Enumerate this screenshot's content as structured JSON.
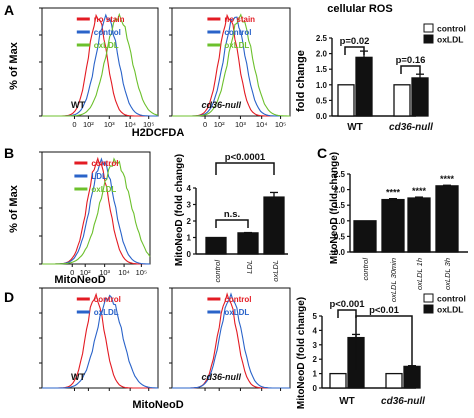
{
  "colors": {
    "red": "#e31b23",
    "blue": "#2a63c9",
    "green": "#6cc02c",
    "axis": "#111111",
    "bar_black": "#111111",
    "bar_white": "#ffffff"
  },
  "panels": [
    {
      "letter": "A"
    },
    {
      "letter": "B"
    },
    {
      "letter": "C"
    },
    {
      "letter": "D"
    }
  ],
  "chart_data": [
    {
      "id": "A-flow",
      "type": "line",
      "ylabel": "% of Max",
      "xlabel": "H2DCFDA",
      "xticks": [
        "0",
        "10²",
        "10³",
        "10⁴",
        "10⁵"
      ],
      "subplots": [
        {
          "label": "WT",
          "legend": [
            "no stain",
            "control",
            "oxLDL"
          ]
        },
        {
          "label": "cd36-null",
          "legend": [
            "no stain",
            "control",
            "oxLDL"
          ]
        }
      ]
    },
    {
      "id": "A-bar",
      "type": "bar",
      "title": "cellular ROS",
      "ylabel": "fold change",
      "ylim": [
        0,
        2.5
      ],
      "yticks": [
        "0.0",
        "0.5",
        "1.0",
        "1.5",
        "2.0",
        "2.5"
      ],
      "groups": [
        "WT",
        "cd36-null"
      ],
      "legend": [
        "control",
        "oxLDL"
      ],
      "series": [
        {
          "name": "control",
          "values": [
            1.0,
            1.0
          ],
          "errors": [
            0.0,
            0.0
          ]
        },
        {
          "name": "oxLDL",
          "values": [
            1.88,
            1.22
          ],
          "errors": [
            0.2,
            0.12
          ]
        }
      ],
      "annotations": [
        "p=0.02",
        "p=0.16"
      ]
    },
    {
      "id": "B-flow",
      "type": "line",
      "ylabel": "% of Max",
      "xlabel": "MitoNeoD",
      "xticks": [
        "0",
        "10²",
        "10³",
        "10⁴",
        "10⁵"
      ],
      "legend": [
        "control",
        "LDL",
        "oxLDL"
      ]
    },
    {
      "id": "B-bar",
      "type": "bar",
      "ylabel": "MitoNeoD (fold change)",
      "ylim": [
        0,
        4
      ],
      "yticks": [
        "0",
        "1",
        "2",
        "3",
        "4"
      ],
      "categories": [
        "control",
        "LDL",
        "oxLDL"
      ],
      "values": [
        1.0,
        1.28,
        3.45
      ],
      "errors": [
        0.0,
        0.02,
        0.28
      ],
      "annotations": [
        "p<0.0001",
        "n.s."
      ]
    },
    {
      "id": "C-bar",
      "type": "bar",
      "ylabel": "MitoNeoD (fold change)",
      "ylim": [
        0,
        2.5
      ],
      "yticks": [
        "0.0",
        "0.5",
        "1.0",
        "1.5",
        "2.0",
        "2.5"
      ],
      "categories": [
        "control",
        "oxLDL 30min",
        "oxLDL 1h",
        "oxLDL 3h"
      ],
      "values": [
        1.0,
        1.68,
        1.73,
        2.12
      ],
      "errors": [
        0.0,
        0.03,
        0.03,
        0.02
      ],
      "stars": [
        "",
        "****",
        "****",
        "****"
      ]
    },
    {
      "id": "D-flow",
      "type": "line",
      "xlabel": "MitoNeoD",
      "xticks": [
        "0",
        "10²",
        "10³",
        "10⁴",
        "10⁵"
      ],
      "subplots": [
        {
          "label": "WT",
          "legend": [
            "control",
            "oxLDL"
          ]
        },
        {
          "label": "cd36-null",
          "legend": [
            "control",
            "oxLDL"
          ]
        }
      ]
    },
    {
      "id": "D-bar",
      "type": "bar",
      "ylabel": "MitoNeoD (fold change)",
      "ylim": [
        0,
        5
      ],
      "yticks": [
        "0",
        "1",
        "2",
        "3",
        "4",
        "5"
      ],
      "groups": [
        "WT",
        "cd36-null"
      ],
      "legend": [
        "control",
        "oxLDL"
      ],
      "series": [
        {
          "name": "control",
          "values": [
            1.0,
            1.0
          ],
          "errors": [
            0.0,
            0.0
          ]
        },
        {
          "name": "oxLDL",
          "values": [
            3.5,
            1.5
          ],
          "errors": [
            0.22,
            0.05
          ]
        }
      ],
      "annotations": [
        "p<0.001",
        "p<0.01"
      ]
    }
  ]
}
